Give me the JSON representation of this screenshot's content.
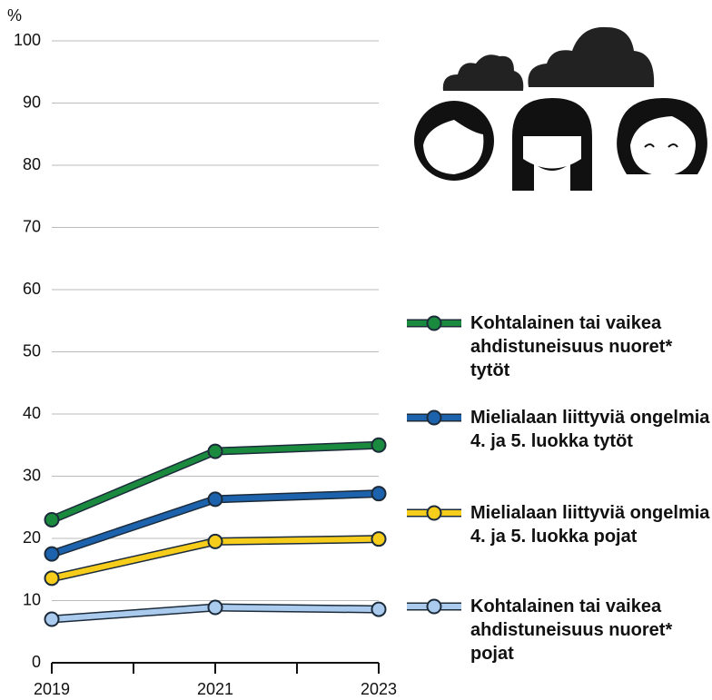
{
  "chart_data": {
    "type": "line",
    "y_label": "%",
    "categories": [
      "2019",
      "2021",
      "2023"
    ],
    "ylim": [
      0,
      100
    ],
    "yticks": [
      0,
      10,
      20,
      30,
      40,
      50,
      60,
      70,
      80,
      90,
      100
    ],
    "grid": true,
    "series": [
      {
        "name": "Kohtalainen tai vaikea ahdistuneisuus nuoret* tytöt",
        "color": "#1a8a3f",
        "values": [
          23,
          34,
          35
        ]
      },
      {
        "name": "Mielialaan liittyviä ongelmia 4. ja 5. luokka tytöt",
        "color": "#1d62ad",
        "values": [
          17.5,
          26.3,
          27.2
        ]
      },
      {
        "name": "Mielialaan liittyviä ongelmia 4. ja 5. luokka pojat",
        "color": "#f7cd1c",
        "values": [
          13.6,
          19.5,
          19.9
        ]
      },
      {
        "name": "Kohtalainen tai vaikea ahdistuneisuus nuoret* pojat",
        "color": "#abcbee",
        "values": [
          7,
          8.9,
          8.6
        ]
      }
    ]
  }
}
